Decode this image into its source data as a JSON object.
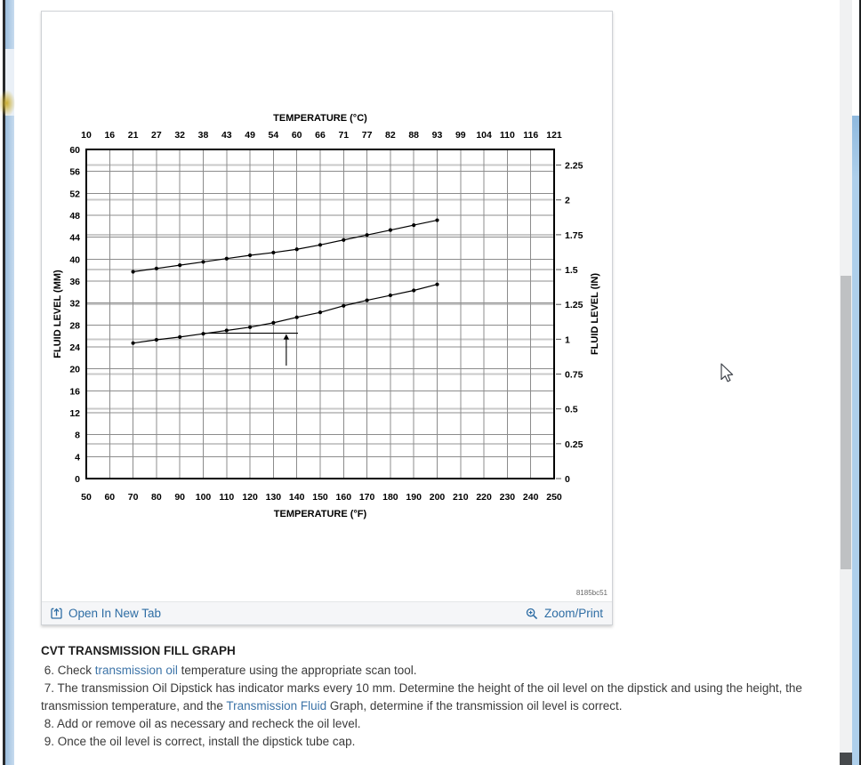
{
  "page": {
    "watermark": "8185bc51",
    "footer": {
      "open_in_new_tab": "Open In New Tab",
      "zoom_print": "Zoom/Print"
    },
    "colors": {
      "footer_link": "#2e6da4",
      "inline_link": "#3d74a8",
      "chart_line": "#000000"
    }
  },
  "chart_data": {
    "type": "line",
    "top_axis_title": "TEMPERATURE (°C)",
    "bottom_axis_title": "TEMPERATURE (°F)",
    "left_axis_title": "FLUID LEVEL (MM)",
    "right_axis_title": "FLUID LEVEL (IN)",
    "xlim": [
      50,
      250
    ],
    "ylim": [
      0,
      60
    ],
    "grid": true,
    "x_ticks_f": [
      50,
      60,
      70,
      80,
      90,
      100,
      110,
      120,
      130,
      140,
      150,
      160,
      170,
      180,
      190,
      200,
      210,
      220,
      230,
      240,
      250
    ],
    "x_ticks_c": [
      "10",
      "16",
      "21",
      "27",
      "32",
      "38",
      "43",
      "49",
      "54",
      "60",
      "66",
      "71",
      "77",
      "82",
      "88",
      "93",
      "99",
      "104",
      "110",
      "116",
      "121"
    ],
    "y_ticks_mm": [
      0,
      4,
      8,
      12,
      16,
      20,
      24,
      28,
      32,
      36,
      40,
      44,
      48,
      52,
      56,
      60
    ],
    "y_ticks_in": [
      "0",
      "0.25",
      "0.5",
      "0.75",
      "1",
      "1.25",
      "1.5",
      "1.75",
      "2",
      "2.25"
    ],
    "series": [
      {
        "name": "upper-fill-line",
        "x": [
          70,
          80,
          90,
          100,
          110,
          120,
          130,
          140,
          150,
          160,
          170,
          180,
          190,
          200
        ],
        "y": [
          37.7,
          38.3,
          38.9,
          39.5,
          40.1,
          40.7,
          41.2,
          41.8,
          42.6,
          43.5,
          44.4,
          45.3,
          46.2,
          47.1
        ]
      },
      {
        "name": "lower-fill-line",
        "x": [
          70,
          80,
          90,
          100,
          110,
          120,
          130,
          140,
          150,
          160,
          170,
          180,
          190,
          200
        ],
        "y": [
          24.7,
          25.3,
          25.8,
          26.4,
          27.0,
          27.6,
          28.4,
          29.4,
          30.3,
          31.5,
          32.5,
          33.4,
          34.3,
          35.4
        ]
      }
    ],
    "annotations": {
      "hline": {
        "y_mm": 26.5,
        "x1_f": 100.5,
        "x2_f": 140.5
      },
      "arrow_up": {
        "x_f": 135.5,
        "y1_mm": 20.6,
        "y2_mm": 26.5
      }
    }
  },
  "instructions": {
    "heading": "CVT TRANSMISSION FILL GRAPH",
    "steps": [
      {
        "segments": [
          {
            "t": " 6. Check "
          },
          {
            "t": "transmission oil",
            "link": true
          },
          {
            "t": " temperature using the appropriate scan tool."
          }
        ]
      },
      {
        "segments": [
          {
            "t": " 7. The transmission Oil Dipstick has indicator marks every 10 mm. Determine the height of the oil level on the dipstick and using the height, the transmission temperature, and the "
          },
          {
            "t": "Transmission Fluid",
            "link": true
          },
          {
            "t": " Graph, determine if the transmission oil level is correct."
          }
        ]
      },
      {
        "segments": [
          {
            "t": " 8. Add or remove oil as necessary and recheck the oil level."
          }
        ]
      },
      {
        "segments": [
          {
            "t": " 9. Once the oil level is correct, install the dipstick tube cap."
          }
        ]
      }
    ]
  }
}
